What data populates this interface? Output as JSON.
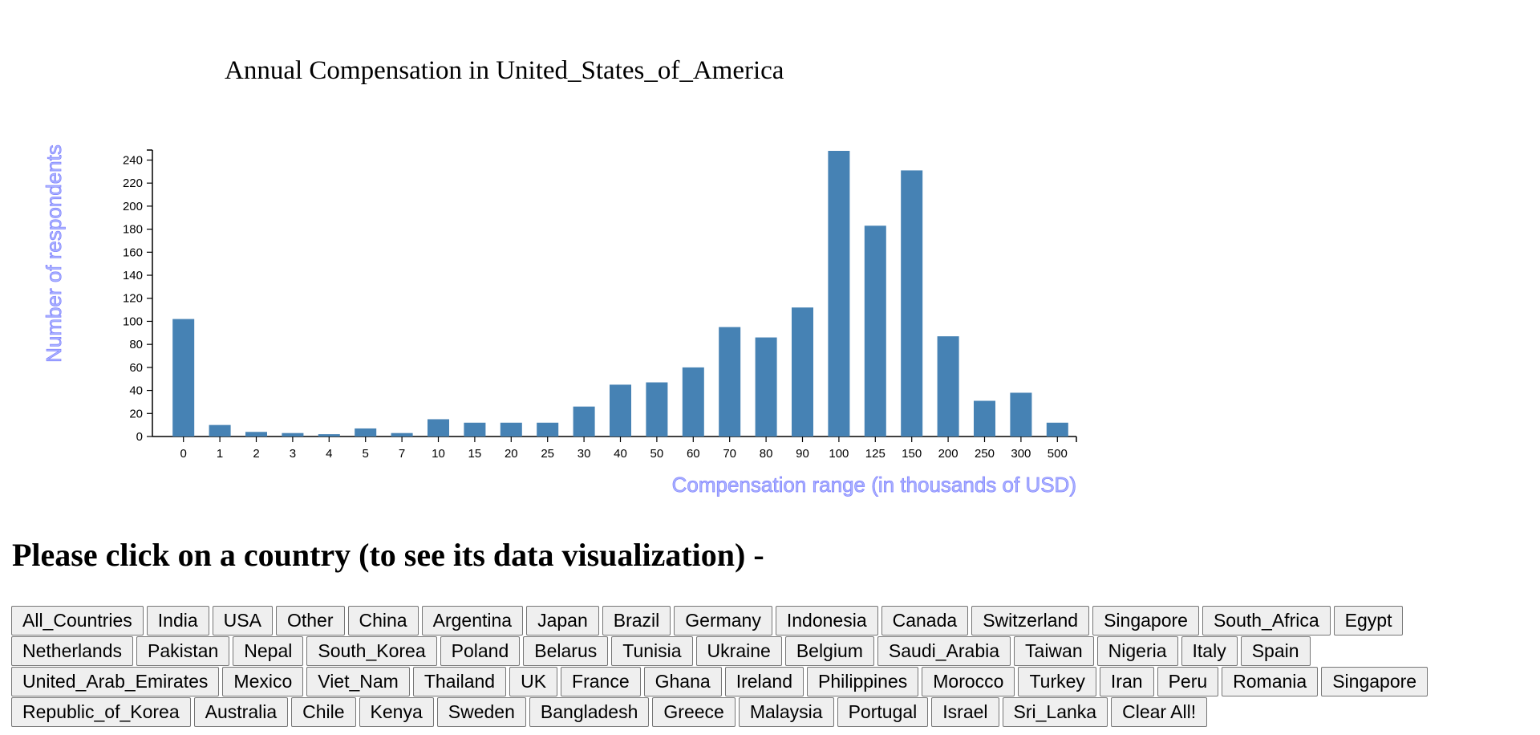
{
  "chart_data": {
    "type": "bar",
    "title": "Annual Compensation in United_States_of_America",
    "xlabel": "Compensation range (in thousands of USD)",
    "ylabel": "Number of respondents",
    "categories": [
      "0",
      "1",
      "2",
      "3",
      "4",
      "5",
      "7",
      "10",
      "15",
      "20",
      "25",
      "30",
      "40",
      "50",
      "60",
      "70",
      "80",
      "90",
      "100",
      "125",
      "150",
      "200",
      "250",
      "300",
      "500"
    ],
    "values": [
      102,
      10,
      4,
      3,
      2,
      7,
      3,
      15,
      12,
      12,
      12,
      26,
      45,
      47,
      60,
      95,
      86,
      112,
      248,
      183,
      231,
      87,
      31,
      38,
      12
    ],
    "ylim": [
      0,
      248
    ],
    "yticks": [
      0,
      20,
      40,
      60,
      80,
      100,
      120,
      140,
      160,
      180,
      200,
      220,
      240
    ],
    "bar_color": "#4682b4",
    "axis_label_color": "#aab4ff",
    "grid": false
  },
  "prompt_text": "Please click on a country (to see its data visualization) -",
  "country_buttons": [
    "All_Countries",
    "India",
    "USA",
    "Other",
    "China",
    "Argentina",
    "Japan",
    "Brazil",
    "Germany",
    "Indonesia",
    "Canada",
    "Switzerland",
    "Singapore",
    "South_Africa",
    "Egypt",
    "Netherlands",
    "Pakistan",
    "Nepal",
    "South_Korea",
    "Poland",
    "Belarus",
    "Tunisia",
    "Ukraine",
    "Belgium",
    "Saudi_Arabia",
    "Taiwan",
    "Nigeria",
    "Italy",
    "Spain",
    "United_Arab_Emirates",
    "Mexico",
    "Viet_Nam",
    "Thailand",
    "UK",
    "France",
    "Ghana",
    "Ireland",
    "Philippines",
    "Morocco",
    "Turkey",
    "Iran",
    "Peru",
    "Romania",
    "Singapore",
    "Republic_of_Korea",
    "Australia",
    "Chile",
    "Kenya",
    "Sweden",
    "Bangladesh",
    "Greece",
    "Malaysia",
    "Portugal",
    "Israel",
    "Sri_Lanka",
    "Clear All!"
  ]
}
